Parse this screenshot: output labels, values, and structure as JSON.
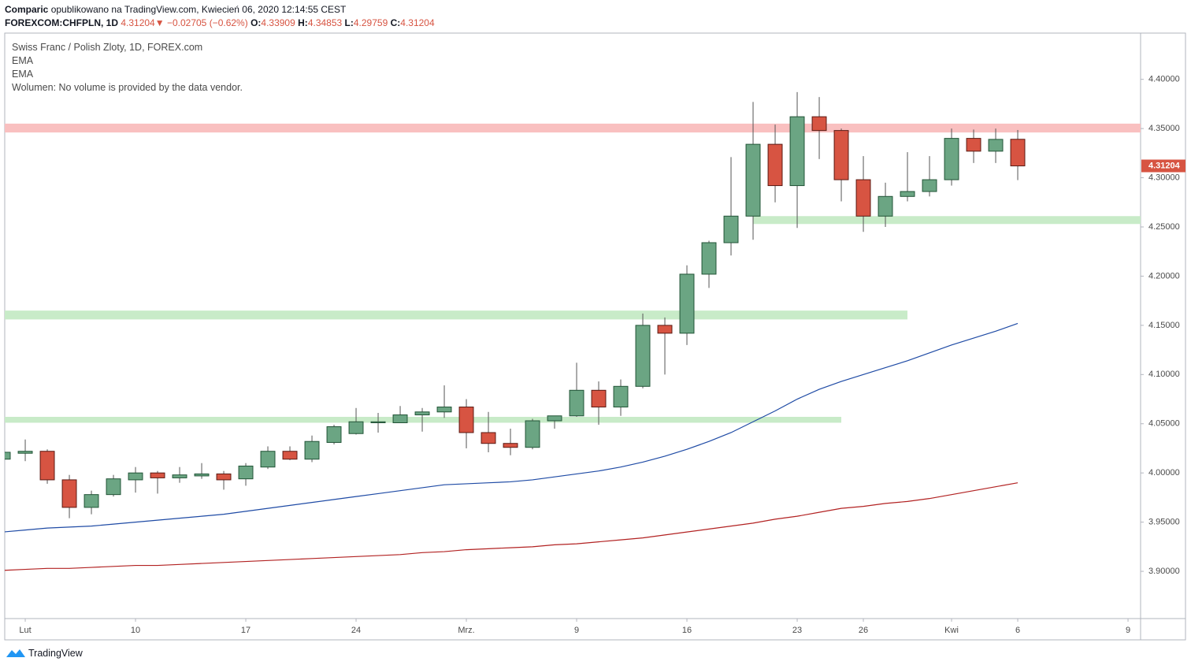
{
  "header": {
    "author": "Comparic",
    "published": "opublikowano na TradingView.com, Kwiecień 06, 2020 12:14:55 CEST",
    "symbol": "FOREXCOM:CHFPLN, 1D",
    "change": "−0.02705 (−0.62%)",
    "o_label": "O:",
    "h_label": "H:",
    "l_label": "L:",
    "c_label": "C:"
  },
  "legend": {
    "title": "Swiss Franc / Polish Zloty, 1D, FOREX.com",
    "ema1": "EMA",
    "ema2": "EMA",
    "volume": "Wolumen: No volume is provided by the data vendor."
  },
  "footer": {
    "brand": "TradingView"
  },
  "chart_data": {
    "type": "candlestick",
    "x": [
      -1,
      0,
      1,
      2,
      3,
      4,
      5,
      6,
      7,
      8,
      9,
      10,
      11,
      12,
      13,
      14,
      15,
      16,
      17,
      18,
      19,
      20,
      21,
      22,
      23,
      24,
      25,
      26,
      27,
      28,
      29,
      30,
      31,
      32,
      33,
      34,
      35,
      36,
      37,
      38,
      39,
      40,
      41,
      42,
      43,
      44,
      45
    ],
    "open": [
      4.014,
      4.02,
      4.022,
      3.993,
      3.965,
      3.978,
      3.993,
      4.0,
      3.995,
      3.997,
      3.999,
      3.994,
      4.006,
      4.022,
      4.014,
      4.031,
      4.04,
      4.051,
      4.051,
      4.059,
      4.062,
      4.067,
      4.041,
      4.03,
      4.026,
      4.053,
      4.058,
      4.084,
      4.067,
      4.088,
      4.15,
      4.142,
      4.202,
      4.234,
      4.261,
      4.334,
      4.292,
      4.362,
      4.348,
      4.298,
      4.261,
      4.281,
      4.286,
      4.298,
      4.34,
      4.327,
      4.33909
    ],
    "high": [
      4.024,
      4.034,
      4.024,
      3.998,
      3.982,
      3.998,
      4.006,
      4.002,
      4.006,
      4.01,
      4.002,
      4.01,
      4.027,
      4.027,
      4.038,
      4.049,
      4.066,
      4.061,
      4.068,
      4.066,
      4.089,
      4.075,
      4.062,
      4.045,
      4.055,
      4.058,
      4.112,
      4.093,
      4.095,
      4.162,
      4.158,
      4.211,
      4.236,
      4.321,
      4.377,
      4.354,
      4.387,
      4.382,
      4.35,
      4.322,
      4.295,
      4.326,
      4.322,
      4.35,
      4.349,
      4.35,
      4.34853
    ],
    "low": [
      4.012,
      4.012,
      3.989,
      3.954,
      3.958,
      3.976,
      3.98,
      3.979,
      3.99,
      3.994,
      3.983,
      3.987,
      4.004,
      4.013,
      4.011,
      4.029,
      4.039,
      4.041,
      4.051,
      4.042,
      4.056,
      4.025,
      4.021,
      4.018,
      4.024,
      4.045,
      4.057,
      4.049,
      4.058,
      4.086,
      4.1,
      4.13,
      4.188,
      4.221,
      4.237,
      4.275,
      4.249,
      4.319,
      4.276,
      4.245,
      4.25,
      4.276,
      4.281,
      4.292,
      4.315,
      4.315,
      4.29759
    ],
    "close": [
      4.021,
      4.022,
      3.993,
      3.965,
      3.978,
      3.994,
      4.0,
      3.995,
      3.998,
      3.999,
      3.993,
      4.007,
      4.022,
      4.014,
      4.032,
      4.047,
      4.052,
      4.052,
      4.059,
      4.062,
      4.067,
      4.041,
      4.03,
      4.026,
      4.053,
      4.058,
      4.084,
      4.067,
      4.088,
      4.15,
      4.142,
      4.202,
      4.234,
      4.261,
      4.334,
      4.292,
      4.362,
      4.348,
      4.298,
      4.261,
      4.281,
      4.286,
      4.298,
      4.34,
      4.327,
      4.339,
      4.31204
    ],
    "up_color": "#6ba583",
    "down_color": "#d75442",
    "up_border": "#225437",
    "down_border": "#5b1a13",
    "lines": [
      {
        "name": "EMA",
        "color": "#1f4ba5",
        "values": [
          3.94,
          3.942,
          3.944,
          3.945,
          3.946,
          3.948,
          3.95,
          3.952,
          3.954,
          3.956,
          3.958,
          3.961,
          3.964,
          3.967,
          3.97,
          3.973,
          3.976,
          3.979,
          3.982,
          3.985,
          3.988,
          3.989,
          3.99,
          3.991,
          3.993,
          3.996,
          3.999,
          4.002,
          4.006,
          4.011,
          4.017,
          4.024,
          4.032,
          4.041,
          4.052,
          4.063,
          4.075,
          4.085,
          4.093,
          4.1,
          4.107,
          4.114,
          4.122,
          4.13,
          4.137,
          4.144,
          4.152
        ]
      },
      {
        "name": "EMA",
        "color": "#b22222",
        "values": [
          3.901,
          3.902,
          3.903,
          3.903,
          3.904,
          3.905,
          3.906,
          3.906,
          3.907,
          3.908,
          3.909,
          3.91,
          3.911,
          3.912,
          3.913,
          3.914,
          3.915,
          3.916,
          3.917,
          3.919,
          3.92,
          3.922,
          3.923,
          3.924,
          3.925,
          3.927,
          3.928,
          3.93,
          3.932,
          3.934,
          3.937,
          3.94,
          3.943,
          3.946,
          3.949,
          3.953,
          3.956,
          3.96,
          3.964,
          3.966,
          3.969,
          3.971,
          3.974,
          3.978,
          3.982,
          3.986,
          3.99
        ]
      }
    ],
    "zones": [
      {
        "from": 4.346,
        "to": 4.355,
        "x_start": -0.93,
        "x_end": 50.57,
        "color": "#f9c0c0"
      },
      {
        "from": 4.253,
        "to": 4.261,
        "x_start": 33,
        "x_end": 50.57,
        "color": "#c8ebc8"
      },
      {
        "from": 4.156,
        "to": 4.165,
        "x_start": -0.93,
        "x_end": 40,
        "color": "#c8ebc8"
      },
      {
        "from": 4.051,
        "to": 4.057,
        "x_start": -0.93,
        "x_end": 37,
        "color": "#c8ebc8"
      }
    ],
    "xlim": [
      -0.93,
      50.57
    ],
    "ylim": [
      3.852,
      4.447
    ],
    "xticks": [
      {
        "value": 0,
        "label": "Lut"
      },
      {
        "value": 5,
        "label": "10"
      },
      {
        "value": 10,
        "label": "17"
      },
      {
        "value": 15,
        "label": "24"
      },
      {
        "value": 20,
        "label": "Mrz."
      },
      {
        "value": 25,
        "label": "9"
      },
      {
        "value": 30,
        "label": "16"
      },
      {
        "value": 35,
        "label": "23"
      },
      {
        "value": 38,
        "label": "26"
      },
      {
        "value": 42,
        "label": "Kwi"
      },
      {
        "value": 45,
        "label": "6"
      },
      {
        "value": 50,
        "label": "9"
      }
    ],
    "yticks": [
      {
        "value": 3.9,
        "label": "3.90000"
      },
      {
        "value": 3.95,
        "label": "3.95000"
      },
      {
        "value": 4.0,
        "label": "4.00000"
      },
      {
        "value": 4.05,
        "label": "4.05000"
      },
      {
        "value": 4.1,
        "label": "4.10000"
      },
      {
        "value": 4.15,
        "label": "4.15000"
      },
      {
        "value": 4.2,
        "label": "4.20000"
      },
      {
        "value": 4.25,
        "label": "4.25000"
      },
      {
        "value": 4.3,
        "label": "4.30000"
      },
      {
        "value": 4.35,
        "label": "4.35000"
      },
      {
        "value": 4.4,
        "label": "4.40000"
      }
    ],
    "grid": false
  }
}
